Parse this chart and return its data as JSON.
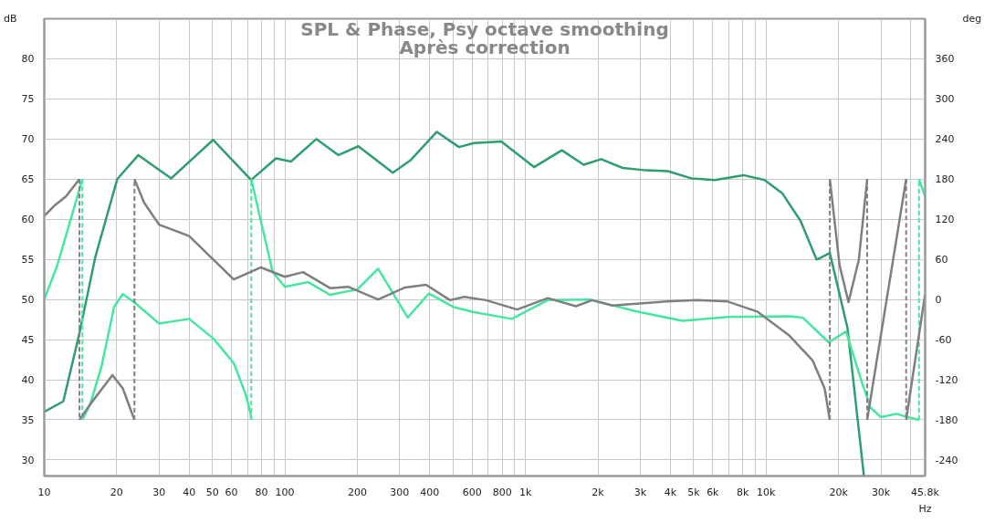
{
  "chart_data": {
    "type": "line",
    "title": "SPL & Phase, Psy octave smoothing",
    "subtitle": "Après correction",
    "xlabel": "Hz",
    "ylabel": "dB",
    "y2label": "deg",
    "log": "x",
    "grid": true,
    "line_style": "solid",
    "marker": "none",
    "xlim": [
      10,
      45800
    ],
    "ylim": [
      28,
      85
    ],
    "y2lim": [
      -264,
      420
    ],
    "xticks": [
      10,
      20,
      30,
      40,
      50,
      60,
      {
        "value": 70,
        "label": null
      },
      80,
      {
        "value": 90,
        "label": null
      },
      100,
      200,
      300,
      400,
      {
        "value": 500,
        "label": null
      },
      600,
      {
        "value": 700,
        "label": null
      },
      800,
      {
        "value": 900,
        "label": null
      },
      {
        "value": 1000,
        "label": "1k"
      },
      {
        "value": 2000,
        "label": "2k"
      },
      {
        "value": 3000,
        "label": "3k"
      },
      {
        "value": 4000,
        "label": "4k"
      },
      {
        "value": 5000,
        "label": "5k"
      },
      {
        "value": 6000,
        "label": "6k"
      },
      {
        "value": 7000,
        "label": null
      },
      {
        "value": 8000,
        "label": "8k"
      },
      {
        "value": 9000,
        "label": null
      },
      {
        "value": 10000,
        "label": "10k"
      },
      {
        "value": 20000,
        "label": "20k"
      },
      {
        "value": 30000,
        "label": "30k"
      },
      {
        "value": 40000,
        "label": null
      },
      {
        "value": 45800,
        "label": "45.8k"
      }
    ],
    "yticks": [
      30,
      35,
      40,
      45,
      50,
      55,
      60,
      65,
      70,
      75,
      80
    ],
    "y2ticks": [
      -240,
      -180,
      -120,
      -60,
      0,
      60,
      120,
      180,
      240,
      300,
      360
    ],
    "series": [
      {
        "color": "#2e9e6e",
        "x": [
          10,
          12,
          14,
          16.3,
          20.1,
          24.6,
          33.7,
          50.3,
          72.4,
          91.9,
          106,
          135,
          167,
          202,
          281,
          334,
          428,
          529,
          611,
          793,
          1085,
          1416,
          1745,
          2063,
          2535,
          3176,
          3904,
          4887,
          6119,
          8050,
          9860,
          11700,
          13900,
          16200,
          16600,
          18400,
          21800,
          25500
        ],
        "values": [
          36,
          37.3,
          45.8,
          55.3,
          65,
          68,
          65.1,
          69.9,
          64.9,
          67.6,
          67.2,
          70,
          68,
          69.1,
          65.8,
          67.4,
          70.9,
          69,
          69.5,
          69.7,
          66.5,
          68.6,
          66.8,
          67.5,
          66.4,
          66.1,
          66,
          65.1,
          64.9,
          65.5,
          64.9,
          63.2,
          59.8,
          55,
          55.1,
          55.8,
          46.4,
          28
        ]
      },
      {
        "color": "#45e6a0",
        "axis": "y2",
        "x": [
          10,
          11.3,
          13.5,
          14.4,
          14.4,
          15.5,
          17.3,
          19.5,
          21.2,
          23.8,
          30,
          40,
          50.3,
          61.3,
          68.9,
          72,
          72.5,
          72.5,
          79.5,
          89,
          100,
          125,
          154,
          200,
          244,
          324,
          397,
          500,
          611,
          877,
          1237,
          1845,
          2898,
          4490,
          6938,
          12400,
          14200,
          18200,
          21500,
          25000,
          27200,
          30000,
          34800,
          38700,
          43200,
          43200,
          45800
        ],
        "values": [
          0,
          50,
          145,
          180,
          -180,
          -157,
          -100,
          -11,
          8,
          -5,
          -36,
          -29,
          -58,
          -95,
          -143,
          -171,
          -180,
          180,
          117,
          41,
          19,
          26,
          7,
          15,
          46,
          -27,
          9,
          -11,
          -19,
          -29,
          -1,
          0,
          -18,
          -32,
          -26,
          -25,
          -27,
          -64,
          -48,
          -124,
          -162,
          -176,
          -171,
          -176,
          -180,
          180,
          154
        ]
      },
      {
        "color": "#7f7f7f",
        "axis": "y2",
        "x": [
          10,
          11,
          12.3,
          14,
          14,
          15.5,
          19.2,
          21.2,
          23.7,
          23.7,
          26,
          30,
          40,
          50.3,
          61.3,
          79.5,
          100,
          119,
          154,
          183,
          244,
          316,
          386,
          486,
          556,
          685,
          923,
          1237,
          1620,
          1892,
          2295,
          3878,
          5163,
          6925,
          9180,
          12400,
          15600,
          17500,
          18400,
          18400,
          20200,
          22000,
          24300,
          26300,
          26300,
          38200,
          38200,
          45800
        ],
        "values": [
          125,
          140,
          154,
          180,
          -180,
          -157,
          -113,
          -133,
          -180,
          180,
          145,
          112,
          95,
          60,
          30,
          48,
          34,
          41,
          17,
          19,
          0,
          18,
          22,
          -1,
          4,
          -1,
          -15,
          2,
          -10,
          -1,
          -9,
          -3,
          -1,
          -3,
          -18,
          -53,
          -91,
          -133,
          -180,
          180,
          51,
          -4,
          60,
          180,
          -180,
          180,
          -180,
          8
        ]
      }
    ]
  }
}
